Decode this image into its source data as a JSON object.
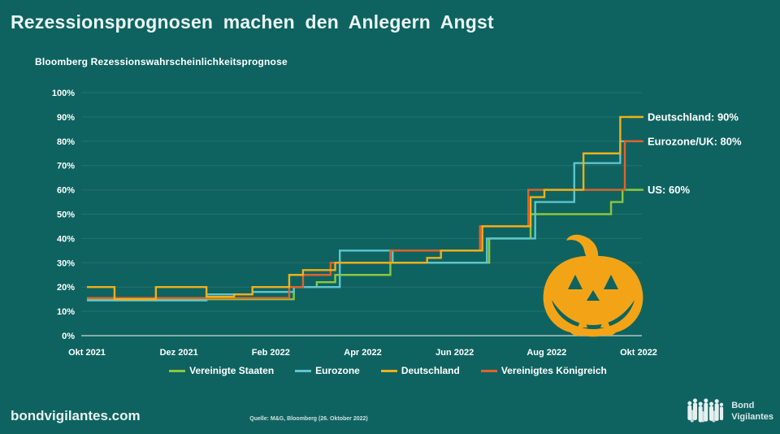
{
  "header": {
    "title": "Rezessionsprognosen machen den Anlegern Angst"
  },
  "chart_data": {
    "type": "line",
    "title": "Bloomberg Rezessionswahrscheinlichkeitsprognose",
    "xlabel": "",
    "ylabel": "",
    "ylim": [
      0,
      100
    ],
    "grid": "horizontal",
    "legend_position": "bottom",
    "x_unit": "Monate ab Okt 2021",
    "x_domain": [
      0,
      12.05
    ],
    "y_ticks": [
      {
        "value": 0,
        "label": "0%"
      },
      {
        "value": 10,
        "label": "10%"
      },
      {
        "value": 20,
        "label": "20%"
      },
      {
        "value": 30,
        "label": "30%"
      },
      {
        "value": 40,
        "label": "40%"
      },
      {
        "value": 50,
        "label": "50%"
      },
      {
        "value": 60,
        "label": "60%"
      },
      {
        "value": 70,
        "label": "70%"
      },
      {
        "value": 80,
        "label": "80%"
      },
      {
        "value": 90,
        "label": "90%"
      },
      {
        "value": 100,
        "label": "100%"
      }
    ],
    "x_ticks": [
      {
        "t": 0,
        "label": "Okt 2021"
      },
      {
        "t": 2,
        "label": "Dez 2021"
      },
      {
        "t": 4,
        "label": "Feb 2022"
      },
      {
        "t": 6,
        "label": "Apr 2022"
      },
      {
        "t": 8,
        "label": "Jun 2022"
      },
      {
        "t": 10,
        "label": "Aug 2022"
      },
      {
        "t": 12,
        "label": "Okt 2022"
      }
    ],
    "series": [
      {
        "name": "Vereinigte Staaten",
        "color": "#8DC63F",
        "step_points": [
          [
            0,
            15
          ],
          [
            4.5,
            20
          ],
          [
            5.0,
            22
          ],
          [
            5.4,
            25
          ],
          [
            6.6,
            30
          ],
          [
            8.75,
            40
          ],
          [
            9.65,
            50
          ],
          [
            11.4,
            55
          ],
          [
            11.65,
            60
          ]
        ]
      },
      {
        "name": "Eurozone",
        "color": "#5EC5CE",
        "step_points": [
          [
            0,
            14.5
          ],
          [
            2.6,
            17
          ],
          [
            3.6,
            18
          ],
          [
            4.5,
            20
          ],
          [
            5.5,
            35
          ],
          [
            6.65,
            30
          ],
          [
            8.7,
            40
          ],
          [
            9.75,
            55
          ],
          [
            10.6,
            71
          ],
          [
            11.6,
            80
          ]
        ]
      },
      {
        "name": "Vereinigtes Königreich",
        "color": "#E2622B",
        "step_points": [
          [
            0,
            15.5
          ],
          [
            4.4,
            20
          ],
          [
            4.7,
            25
          ],
          [
            5.3,
            30
          ],
          [
            6.6,
            35
          ],
          [
            8.55,
            45
          ],
          [
            9.6,
            60
          ],
          [
            11.7,
            80
          ]
        ]
      },
      {
        "name": "Deutschland",
        "color": "#F0B01B",
        "step_points": [
          [
            0,
            20
          ],
          [
            0.6,
            15
          ],
          [
            1.5,
            20
          ],
          [
            2.6,
            16
          ],
          [
            3.2,
            17
          ],
          [
            3.6,
            20
          ],
          [
            4.4,
            25
          ],
          [
            4.7,
            27
          ],
          [
            5.4,
            30
          ],
          [
            7.4,
            32
          ],
          [
            7.7,
            35
          ],
          [
            8.6,
            45
          ],
          [
            9.65,
            57
          ],
          [
            9.95,
            60
          ],
          [
            10.8,
            75
          ],
          [
            11.6,
            90
          ]
        ]
      }
    ],
    "annotations": [
      {
        "label": "Deutschland: 90%",
        "value": 90,
        "tick_color": "#F0B01B"
      },
      {
        "label": "Eurozone/UK: 80%",
        "value": 80,
        "tick_color": "#E2622B"
      },
      {
        "label": "US: 60%",
        "value": 60,
        "tick_color": "#8DC63F"
      }
    ]
  },
  "legend_order": [
    "Vereinigte Staaten",
    "Eurozone",
    "Deutschland",
    "Vereinigtes Königreich"
  ],
  "footer": {
    "site": "bondvigilantes.com",
    "source": "Quelle: M&G, Bloomberg (26. Oktober 2022)",
    "logo_line1": "Bond",
    "logo_line2": "Vigilantes"
  },
  "colors": {
    "background": "#0E6360",
    "grid": "#26716E",
    "axis": "#AFC3C2",
    "text": "#FFFFFF",
    "pumpkin": "#F2A416"
  }
}
